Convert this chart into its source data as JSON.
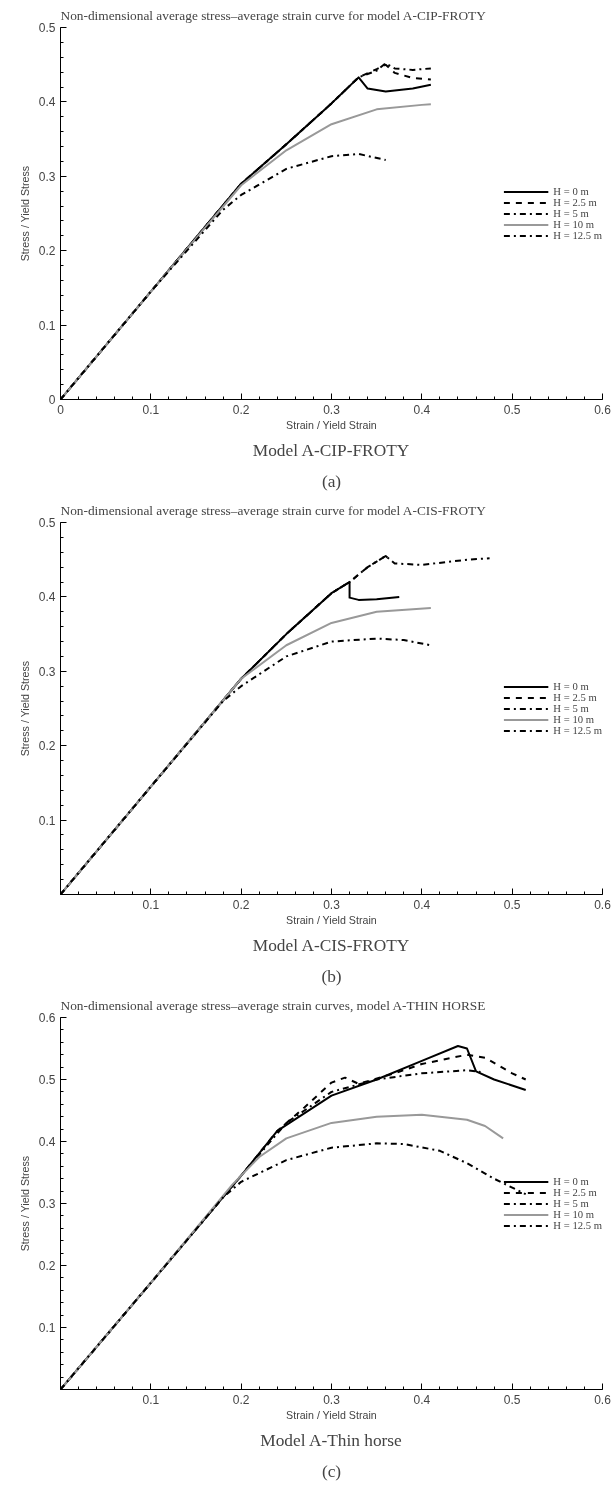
{
  "chart_data": [
    {
      "type": "line",
      "title": "Non-dimensional average stress–average strain curve for model A-CIP-FROTY",
      "xlabel": "Strain / Yield Strain",
      "ylabel": "Stress / Yield Stress",
      "annotations": [
        "Model A-CIP-FROTY",
        "(a)"
      ],
      "xlim": [
        0,
        0.6
      ],
      "ylim": [
        0,
        0.5
      ],
      "xticks": [
        0,
        0.1,
        0.2,
        0.3,
        0.4,
        0.5,
        0.6
      ],
      "yticks": [
        0,
        0.1,
        0.2,
        0.3,
        0.4,
        0.5
      ],
      "grid": false,
      "legend": "right",
      "marker": "none",
      "series": [
        {
          "name": "H = 0 m",
          "color": "#000000",
          "line_style": "solid",
          "x": [
            0,
            0.1,
            0.2,
            0.25,
            0.3,
            0.33,
            0.34,
            0.36,
            0.39,
            0.41
          ],
          "values": [
            0,
            0.145,
            0.29,
            0.343,
            0.398,
            0.433,
            0.418,
            0.414,
            0.418,
            0.423
          ]
        },
        {
          "name": "H = 2.5 m",
          "color": "#000000",
          "line_style": "dashed",
          "x": [
            0,
            0.1,
            0.2,
            0.25,
            0.3,
            0.33,
            0.35,
            0.36,
            0.37,
            0.39,
            0.41
          ],
          "values": [
            0,
            0.145,
            0.29,
            0.343,
            0.398,
            0.433,
            0.444,
            0.45,
            0.439,
            0.432,
            0.43
          ]
        },
        {
          "name": "H = 5 m",
          "color": "#000000",
          "line_style": "dashdot",
          "x": [
            0,
            0.1,
            0.2,
            0.25,
            0.3,
            0.33,
            0.35,
            0.36,
            0.37,
            0.39,
            0.41
          ],
          "values": [
            0,
            0.145,
            0.29,
            0.343,
            0.398,
            0.433,
            0.442,
            0.452,
            0.445,
            0.443,
            0.445
          ]
        },
        {
          "name": "H = 10 m",
          "color": "#999999",
          "line_style": "solid",
          "x": [
            0,
            0.1,
            0.2,
            0.25,
            0.3,
            0.35,
            0.4,
            0.41
          ],
          "values": [
            0,
            0.145,
            0.288,
            0.335,
            0.37,
            0.39,
            0.396,
            0.397
          ]
        },
        {
          "name": "H = 12.5 m",
          "color": "#000000",
          "line_style": "dashdot",
          "x": [
            0,
            0.1,
            0.18,
            0.2,
            0.25,
            0.3,
            0.33,
            0.36
          ],
          "values": [
            0,
            0.145,
            0.255,
            0.275,
            0.31,
            0.327,
            0.33,
            0.322
          ]
        }
      ]
    },
    {
      "type": "line",
      "title": "Non-dimensional average stress–average strain curve for model A-CIS-FROTY",
      "xlabel": "Strain / Yield Strain",
      "ylabel": "Stress / Yield Stress",
      "annotations": [
        "Model A-CIS-FROTY",
        "(b)"
      ],
      "xlim": [
        0,
        0.6
      ],
      "ylim": [
        0,
        0.5
      ],
      "xticks": [
        0.1,
        0.2,
        0.3,
        0.4,
        0.5,
        0.6
      ],
      "yticks": [
        0.1,
        0.2,
        0.3,
        0.4,
        0.5
      ],
      "grid": false,
      "legend": "right",
      "marker": "none",
      "series": [
        {
          "name": "H = 0 m",
          "color": "#000000",
          "line_style": "solid",
          "x": [
            0,
            0.1,
            0.2,
            0.25,
            0.3,
            0.32,
            0.32,
            0.33,
            0.35,
            0.375
          ],
          "values": [
            0,
            0.145,
            0.29,
            0.35,
            0.405,
            0.42,
            0.399,
            0.396,
            0.397,
            0.4
          ]
        },
        {
          "name": "H = 2.5 m",
          "color": "#000000",
          "line_style": "dashed",
          "x": [
            0,
            0.1,
            0.2,
            0.25,
            0.3,
            0.32,
            0.34,
            0.36,
            0.365
          ],
          "values": [
            0,
            0.145,
            0.29,
            0.35,
            0.405,
            0.42,
            0.44,
            0.455,
            0.45
          ]
        },
        {
          "name": "H = 5 m",
          "color": "#000000",
          "line_style": "dashdot",
          "x": [
            0,
            0.1,
            0.2,
            0.25,
            0.3,
            0.32,
            0.34,
            0.36,
            0.37,
            0.4,
            0.45,
            0.475
          ],
          "values": [
            0,
            0.145,
            0.29,
            0.35,
            0.405,
            0.42,
            0.44,
            0.455,
            0.445,
            0.443,
            0.45,
            0.452
          ]
        },
        {
          "name": "H = 10 m",
          "color": "#999999",
          "line_style": "solid",
          "x": [
            0,
            0.1,
            0.2,
            0.25,
            0.3,
            0.35,
            0.41
          ],
          "values": [
            0,
            0.145,
            0.29,
            0.335,
            0.365,
            0.38,
            0.385
          ]
        },
        {
          "name": "H = 12.5 m",
          "color": "#000000",
          "line_style": "dashdot",
          "x": [
            0,
            0.1,
            0.18,
            0.2,
            0.25,
            0.3,
            0.35,
            0.38,
            0.41
          ],
          "values": [
            0,
            0.145,
            0.26,
            0.28,
            0.32,
            0.34,
            0.344,
            0.342,
            0.335
          ]
        }
      ]
    },
    {
      "type": "line",
      "title": "Non-dimensional average stress–average strain curves, model A-THIN HORSE",
      "xlabel": "Strain / Yield Strain",
      "ylabel": "Stress / Yield Stress",
      "annotations": [
        "Model A-Thin horse",
        "(c)"
      ],
      "xlim": [
        0,
        0.6
      ],
      "ylim": [
        0,
        0.6
      ],
      "xticks": [
        0.1,
        0.2,
        0.3,
        0.4,
        0.5,
        0.6
      ],
      "yticks": [
        0.1,
        0.2,
        0.3,
        0.4,
        0.5,
        0.6
      ],
      "grid": false,
      "legend": "right",
      "marker": "none",
      "series": [
        {
          "name": "H = 0 m",
          "color": "#000000",
          "line_style": "solid",
          "x": [
            0,
            0.1,
            0.2,
            0.24,
            0.3,
            0.35,
            0.4,
            0.44,
            0.45,
            0.46,
            0.48,
            0.515
          ],
          "values": [
            0,
            0.172,
            0.345,
            0.417,
            0.474,
            0.5,
            0.53,
            0.554,
            0.55,
            0.513,
            0.5,
            0.483
          ]
        },
        {
          "name": "H = 2.5 m",
          "color": "#000000",
          "line_style": "dashed",
          "x": [
            0,
            0.1,
            0.2,
            0.24,
            0.27,
            0.3,
            0.315,
            0.33,
            0.37,
            0.4,
            0.45,
            0.47,
            0.5,
            0.515
          ],
          "values": [
            0,
            0.172,
            0.345,
            0.417,
            0.455,
            0.495,
            0.503,
            0.493,
            0.51,
            0.525,
            0.54,
            0.535,
            0.51,
            0.5
          ]
        },
        {
          "name": "H = 5 m",
          "color": "#000000",
          "line_style": "dashdot",
          "x": [
            0,
            0.1,
            0.2,
            0.25,
            0.3,
            0.35,
            0.4,
            0.45,
            0.465
          ],
          "values": [
            0,
            0.172,
            0.345,
            0.43,
            0.48,
            0.5,
            0.51,
            0.515,
            0.512
          ]
        },
        {
          "name": "H = 10 m",
          "color": "#999999",
          "line_style": "solid",
          "x": [
            0,
            0.1,
            0.19,
            0.22,
            0.25,
            0.3,
            0.35,
            0.4,
            0.45,
            0.47,
            0.49
          ],
          "values": [
            0,
            0.172,
            0.33,
            0.375,
            0.405,
            0.43,
            0.44,
            0.443,
            0.435,
            0.425,
            0.405
          ]
        },
        {
          "name": "H = 12.5 m",
          "color": "#000000",
          "line_style": "dashdot",
          "x": [
            0,
            0.1,
            0.18,
            0.2,
            0.25,
            0.3,
            0.35,
            0.38,
            0.42,
            0.45,
            0.48,
            0.515
          ],
          "values": [
            0,
            0.172,
            0.31,
            0.335,
            0.37,
            0.39,
            0.397,
            0.396,
            0.385,
            0.365,
            0.34,
            0.315
          ]
        }
      ]
    }
  ]
}
